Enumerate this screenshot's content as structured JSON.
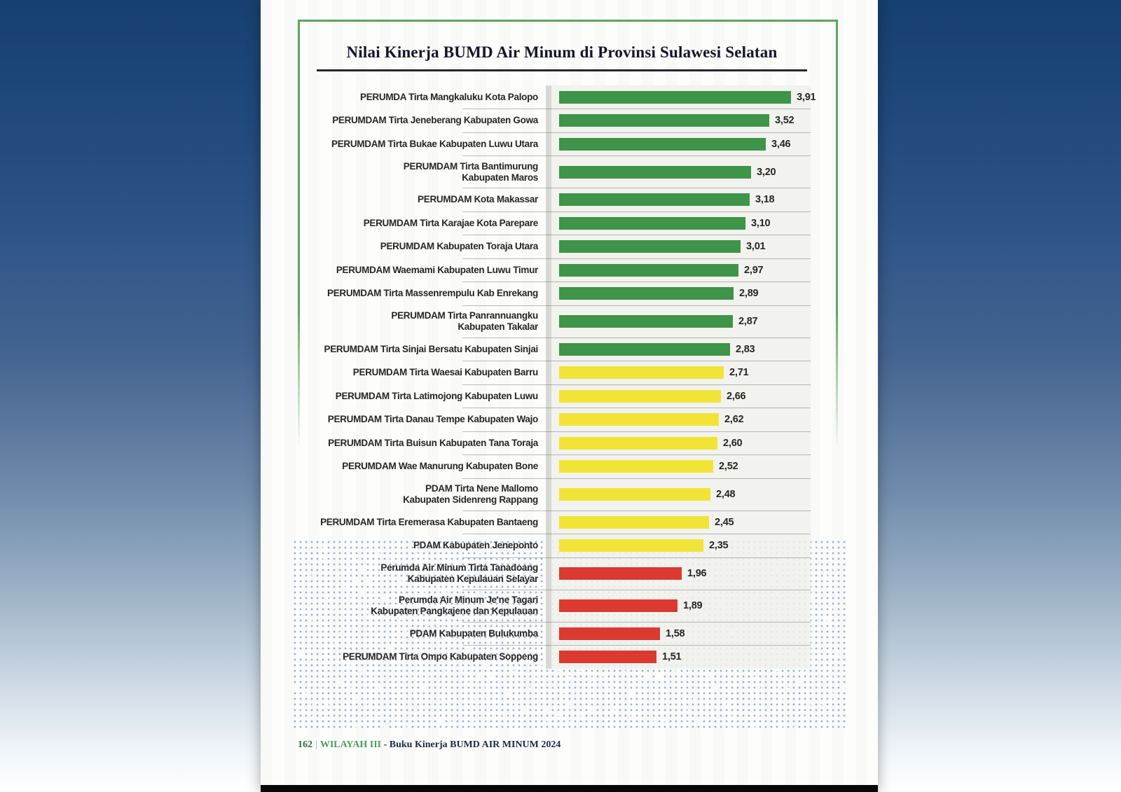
{
  "page": {
    "footer": {
      "page_number": "162",
      "separator": "|",
      "section": "WILAYAH III",
      "rest": "- Buku Kinerja BUMD AIR MINUM 2024"
    }
  },
  "colors": {
    "bar_green": "#3e9448",
    "bar_yellow": "#f2e437",
    "bar_red": "#dc3a30",
    "frame_green": "#5ea55e",
    "page_number_green": "#2f6b3f",
    "section_green": "#4e9e5b",
    "footer_navy": "#1c2b49",
    "background_navy": "#164070",
    "dots_blue": "#5685b9"
  },
  "chart_data": {
    "type": "bar",
    "orientation": "horizontal",
    "title": "Nilai Kinerja BUMD Air Minum di Provinsi Sulawesi Selatan",
    "xlabel": "",
    "ylabel": "",
    "xlim": [
      0,
      4
    ],
    "grid": "row-separators",
    "legend": "none",
    "value_format": "comma-decimal",
    "bars": [
      {
        "label_lines": [
          "PERUMDA Tirta Mangkaluku Kota Palopo"
        ],
        "value": 3.91,
        "display": "3,91",
        "color": "green"
      },
      {
        "label_lines": [
          "PERUMDAM Tirta Jeneberang Kabupaten Gowa"
        ],
        "value": 3.52,
        "display": "3,52",
        "color": "green"
      },
      {
        "label_lines": [
          "PERUMDAM Tirta Bukae Kabupaten Luwu Utara"
        ],
        "value": 3.46,
        "display": "3,46",
        "color": "green"
      },
      {
        "label_lines": [
          "PERUMDAM Tirta Bantimurung",
          "Kabupaten Maros"
        ],
        "value": 3.2,
        "display": "3,20",
        "color": "green"
      },
      {
        "label_lines": [
          "PERUMDAM Kota Makassar"
        ],
        "value": 3.18,
        "display": "3,18",
        "color": "green"
      },
      {
        "label_lines": [
          "PERUMDAM Tirta Karajae Kota Parepare"
        ],
        "value": 3.1,
        "display": "3,10",
        "color": "green"
      },
      {
        "label_lines": [
          "PERUMDAM Kabupaten Toraja Utara"
        ],
        "value": 3.01,
        "display": "3,01",
        "color": "green"
      },
      {
        "label_lines": [
          "PERUMDAM Waemami Kabupaten Luwu Timur"
        ],
        "value": 2.97,
        "display": "2,97",
        "color": "green"
      },
      {
        "label_lines": [
          "PERUMDAM Tirta Massenrempulu Kab Enrekang"
        ],
        "value": 2.89,
        "display": "2,89",
        "color": "green"
      },
      {
        "label_lines": [
          "PERUMDAM Tirta Panrannuangku",
          "Kabupaten Takalar"
        ],
        "value": 2.87,
        "display": "2,87",
        "color": "green"
      },
      {
        "label_lines": [
          "PERUMDAM Tirta Sinjai Bersatu Kabupaten Sinjai"
        ],
        "value": 2.83,
        "display": "2,83",
        "color": "green"
      },
      {
        "label_lines": [
          "PERUMDAM Tirta Waesai Kabupaten Barru"
        ],
        "value": 2.71,
        "display": "2,71",
        "color": "yellow"
      },
      {
        "label_lines": [
          "PERUMDAM Tirta Latimojong Kabupaten Luwu"
        ],
        "value": 2.66,
        "display": "2,66",
        "color": "yellow"
      },
      {
        "label_lines": [
          "PERUMDAM Tirta Danau Tempe Kabupaten Wajo"
        ],
        "value": 2.62,
        "display": "2,62",
        "color": "yellow"
      },
      {
        "label_lines": [
          "PERUMDAM Tirta Buisun Kabupaten Tana Toraja"
        ],
        "value": 2.6,
        "display": "2,60",
        "color": "yellow"
      },
      {
        "label_lines": [
          "PERUMDAM Wae Manurung Kabupaten Bone"
        ],
        "value": 2.52,
        "display": "2,52",
        "color": "yellow"
      },
      {
        "label_lines": [
          "PDAM Tirta Nene Mallomo",
          "Kabupaten Sidenreng Rappang"
        ],
        "value": 2.48,
        "display": "2,48",
        "color": "yellow"
      },
      {
        "label_lines": [
          "PERUMDAM Tirta Eremerasa Kabupaten Bantaeng"
        ],
        "value": 2.45,
        "display": "2,45",
        "color": "yellow"
      },
      {
        "label_lines": [
          "PDAM Kabupaten Jeneponto"
        ],
        "value": 2.35,
        "display": "2,35",
        "color": "yellow"
      },
      {
        "label_lines": [
          "Perumda Air Minum Tirta Tanadoang",
          "Kabupaten Kepulauan Selayar"
        ],
        "value": 1.96,
        "display": "1,96",
        "color": "red"
      },
      {
        "label_lines": [
          "Perumda Air Minum Je'ne Tagari",
          "Kabupaten Pangkajene dan Kepulauan"
        ],
        "value": 1.89,
        "display": "1,89",
        "color": "red"
      },
      {
        "label_lines": [
          "PDAM Kabupaten Bulukumba"
        ],
        "value": 1.58,
        "display": "1,58",
        "color": "red"
      },
      {
        "label_lines": [
          "PERUMDAM Tirta Ompo Kabupaten Soppeng"
        ],
        "value": 1.51,
        "display": "1,51",
        "color": "red"
      }
    ]
  }
}
